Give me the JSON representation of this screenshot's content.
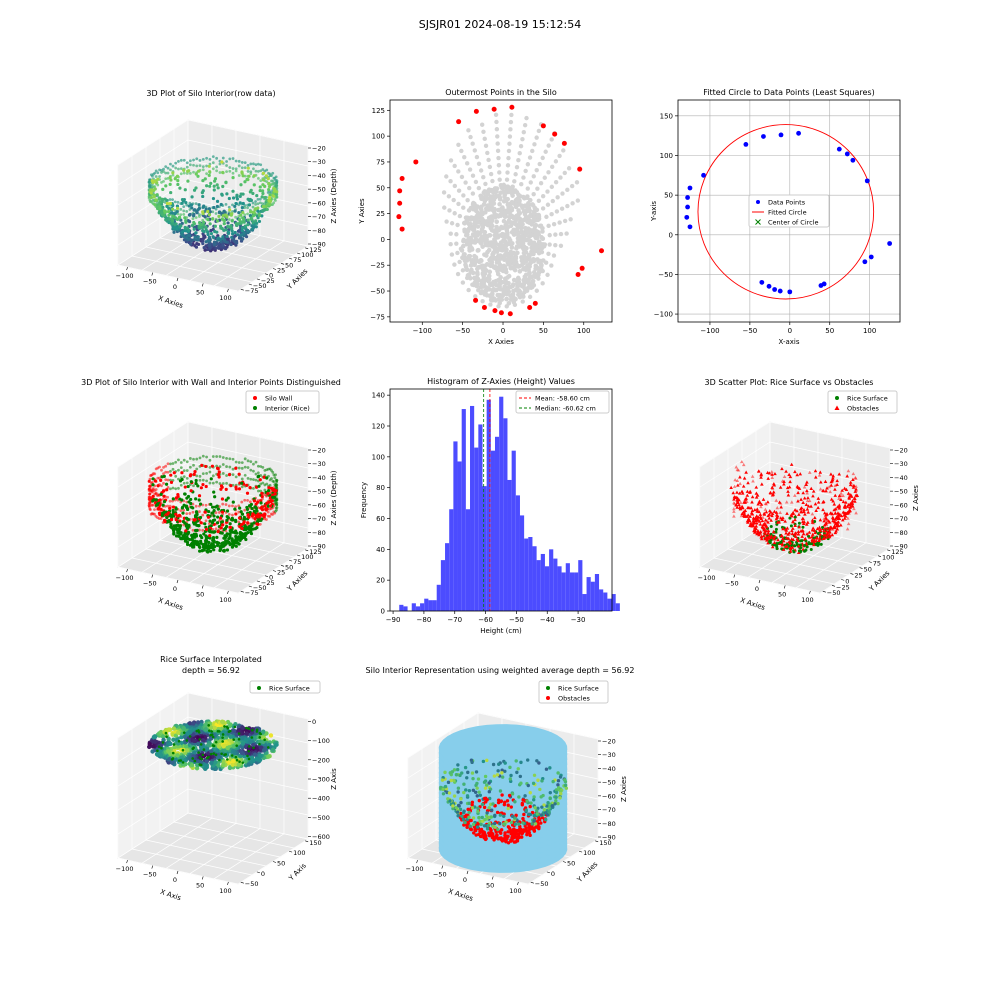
{
  "figure_title": "SJSJR01 2024-08-19 15:12:54",
  "colors": {
    "wall_red": "#ff0000",
    "rice_green": "#008000",
    "gray_points": "#d3d3d3",
    "blue_points": "#0000ff",
    "hist_blue": "#4c4cff",
    "silo_skyblue": "#87ceeb",
    "viridis": [
      "#440154",
      "#3b528b",
      "#21918c",
      "#5ec962",
      "#fde725"
    ]
  },
  "chart_data": [
    {
      "type": "scatter3d",
      "title": "3D Plot of Silo Interior(row data)",
      "xlabel": "X Axies",
      "ylabel": "Y Axies",
      "zlabel": "Z Axies (Depth)",
      "xticks": [
        "−100",
        "−50",
        "0",
        "50",
        "100"
      ],
      "yticks": [
        "−75",
        "−50",
        "−25",
        "0",
        "25",
        "50",
        "75",
        "100",
        "125"
      ],
      "zticks": [
        "−20",
        "−30",
        "−40",
        "−50",
        "−60",
        "−70",
        "−80",
        "−90"
      ],
      "colormap": "viridis"
    },
    {
      "type": "scatter",
      "title": "Outermost Points in the Silo",
      "xlabel": "X Axies",
      "ylabel": "Y Axies",
      "xlim": [
        -140,
        135
      ],
      "ylim": [
        -80,
        135
      ],
      "xticks": [
        -100,
        -50,
        0,
        50,
        100
      ],
      "yticks": [
        -75,
        -50,
        -25,
        0,
        25,
        50,
        75,
        100,
        125
      ],
      "series": [
        {
          "color": "#d3d3d3"
        },
        {
          "color": "#ff0000",
          "points": [
            [
              -125,
              10
            ],
            [
              -129,
              22
            ],
            [
              -128,
              35
            ],
            [
              -128,
              47
            ],
            [
              -125,
              59
            ],
            [
              -108,
              75
            ],
            [
              -55,
              114
            ],
            [
              -33,
              124
            ],
            [
              -11,
              126
            ],
            [
              11,
              128
            ],
            [
              50,
              110
            ],
            [
              64,
              102
            ],
            [
              76,
              93
            ],
            [
              95,
              68
            ],
            [
              122,
              -11
            ],
            [
              98,
              -28
            ],
            [
              93,
              -34
            ],
            [
              40,
              -62
            ],
            [
              33,
              -66
            ],
            [
              9,
              -72
            ],
            [
              -2,
              -71
            ],
            [
              -10,
              -69
            ],
            [
              -23,
              -66
            ],
            [
              -34,
              -59
            ]
          ]
        }
      ]
    },
    {
      "type": "scatter",
      "title": "Fitted Circle to Data Points (Least Squares)",
      "xlabel": "X-axis",
      "ylabel": "Y-axis",
      "xlim": [
        -140,
        138
      ],
      "ylim": [
        -110,
        170
      ],
      "xticks": [
        -100,
        -50,
        0,
        50,
        100
      ],
      "yticks": [
        -100,
        -50,
        0,
        50,
        100,
        150
      ],
      "grid": true,
      "legend": {
        "location": "center",
        "entries": [
          "Data Points",
          "Fitted Circle",
          "Center of Circle"
        ]
      },
      "data_points": [
        [
          -125,
          10
        ],
        [
          -129,
          22
        ],
        [
          -128,
          35
        ],
        [
          -128,
          47
        ],
        [
          -125,
          59
        ],
        [
          -108,
          75
        ],
        [
          -55,
          114
        ],
        [
          -33,
          124
        ],
        [
          -11,
          126
        ],
        [
          11,
          128
        ],
        [
          62,
          108
        ],
        [
          72,
          102
        ],
        [
          79,
          94
        ],
        [
          97,
          68
        ],
        [
          125,
          -11
        ],
        [
          102,
          -28
        ],
        [
          94,
          -34
        ],
        [
          43,
          -62
        ],
        [
          39,
          -64
        ],
        [
          0,
          -72
        ],
        [
          -12,
          -71
        ],
        [
          -19,
          -69
        ],
        [
          -26,
          -65
        ],
        [
          -35,
          -60
        ]
      ],
      "circle": {
        "cx": -5,
        "cy": 29,
        "r": 110
      }
    },
    {
      "type": "scatter3d",
      "title": "3D Plot of Silo Interior with Wall and Interior Points Distinguished",
      "xlabel": "X Axies",
      "ylabel": "Y Axies",
      "zlabel": "Z Axies (Depth)",
      "legend": {
        "location": "upper right",
        "entries": [
          "Silo Wall",
          "Interior (Rice)"
        ]
      },
      "xticks": [
        "−100",
        "−50",
        "0",
        "50",
        "100"
      ],
      "yticks": [
        "−75",
        "−50",
        "−25",
        "0",
        "25",
        "50",
        "75",
        "100",
        "125"
      ],
      "zticks": [
        "−20",
        "−30",
        "−40",
        "−50",
        "−60",
        "−70",
        "−80",
        "−90"
      ]
    },
    {
      "type": "histogram",
      "title": "Histogram of Z-Axies (Height) Values",
      "xlabel": "Height (cm)",
      "ylabel": "Frequency",
      "xlim": [
        -91,
        -19
      ],
      "ylim": [
        0,
        144
      ],
      "xticks": [
        -90,
        -80,
        -70,
        -60,
        -50,
        -40,
        -30
      ],
      "yticks": [
        0,
        20,
        40,
        60,
        80,
        100,
        120,
        140
      ],
      "bin_start": -88,
      "bin_width": 1.35,
      "counts": [
        4,
        3,
        0,
        5,
        3,
        5,
        8,
        7,
        7,
        17,
        33,
        44,
        66,
        110,
        97,
        131,
        66,
        133,
        106,
        121,
        81,
        137,
        104,
        113,
        139,
        125,
        85,
        104,
        75,
        62,
        47,
        48,
        42,
        33,
        37,
        29,
        40,
        34,
        29,
        25,
        31,
        25,
        25,
        33,
        11,
        22,
        19,
        24,
        14,
        12,
        8,
        11,
        5
      ],
      "mean": -58.6,
      "median": -60.62,
      "legend": {
        "location": "upper right",
        "entries": [
          "Mean: -58.60 cm",
          "Median: -60.62 cm"
        ]
      }
    },
    {
      "type": "scatter3d",
      "title": "3D Scatter Plot: Rice Surface vs Obstacles",
      "xlabel": "X Axies",
      "ylabel": "Y Axies",
      "zlabel": "Z Axies",
      "legend": {
        "location": "upper right",
        "entries": [
          "Rice Surface",
          "Obstacles"
        ]
      },
      "xticks": [
        "−100",
        "−50",
        "0",
        "50",
        "100"
      ],
      "yticks": [
        "−50",
        "−25",
        "0",
        "25",
        "50",
        "75",
        "100",
        "125"
      ],
      "zticks": [
        "−20",
        "−30",
        "−40",
        "−50",
        "−60",
        "−70",
        "−80",
        "−90"
      ]
    },
    {
      "type": "surface3d",
      "title": "Rice Surface Interpolated\ndepth = 56.92",
      "title_lines": [
        "Rice Surface Interpolated",
        "depth = 56.92"
      ],
      "xlabel": "X Axis",
      "ylabel": "Y Axis",
      "zlabel": "Z Axis",
      "legend": {
        "location": "upper right",
        "entries": [
          "Rice Surface"
        ]
      },
      "xticks": [
        "−100",
        "−50",
        "0",
        "50",
        "100"
      ],
      "yticks": [
        "−50",
        "0",
        "50",
        "100",
        "150"
      ],
      "zticks": [
        "0",
        "−100",
        "−200",
        "−300",
        "−400",
        "−500",
        "−600"
      ]
    },
    {
      "type": "surface3d",
      "title": "Silo Interior Representation using weighted average depth = 56.92",
      "xlabel": "X Axies",
      "ylabel": "Y Axies",
      "zlabel": "Z Axies",
      "legend": {
        "location": "upper right",
        "entries": [
          "Rice Surface",
          "Obstacles"
        ]
      },
      "xticks": [
        "−100",
        "−50",
        "0",
        "50",
        "100"
      ],
      "yticks": [
        "−50",
        "0",
        "50",
        "100",
        "150"
      ],
      "zticks": [
        "−20",
        "−30",
        "−40",
        "−50",
        "−60",
        "−70",
        "−80",
        "−90"
      ]
    }
  ]
}
